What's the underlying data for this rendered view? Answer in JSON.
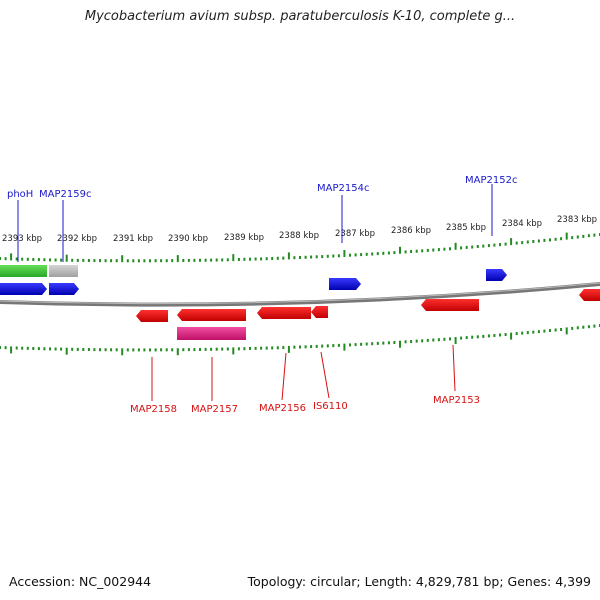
{
  "title": "Mycobacterium avium subsp. paratuberculosis K-10, complete g...",
  "footer": {
    "accession": "Accession: NC_002944",
    "summary": "Topology: circular; Length: 4,829,781 bp; Genes: 4,399"
  },
  "scale_labels": [
    "2393 kbp",
    "2392 kbp",
    "2391 kbp",
    "2390 kbp",
    "2389 kbp",
    "2388 kbp",
    "2387 kbp",
    "2386 kbp",
    "2385 kbp",
    "2384 kbp",
    "2383 kbp"
  ],
  "top_genes": [
    {
      "label": "phoH",
      "color": "#1a1acc"
    },
    {
      "label": "MAP2159c",
      "color": "#1a1acc"
    },
    {
      "label": "MAP2154c",
      "color": "#1a1acc"
    },
    {
      "label": "MAP2152c",
      "color": "#1a1acc"
    }
  ],
  "bottom_genes": [
    {
      "label": "MAP2158",
      "color": "#d81010"
    },
    {
      "label": "MAP2157",
      "color": "#d81010"
    },
    {
      "label": "MAP2156",
      "color": "#d81010"
    },
    {
      "label": "IS6110",
      "color": "#d81010"
    },
    {
      "label": "MAP2153",
      "color": "#d81010"
    }
  ],
  "colors": {
    "forward_gene": "#0000ee",
    "reverse_gene": "#ee0000",
    "pseudo_gene": "#e0197f",
    "rna_green": "#33cc33",
    "grey_feature": "#bbbbbb",
    "ticks": "#228b22",
    "backbone": "#777777"
  }
}
